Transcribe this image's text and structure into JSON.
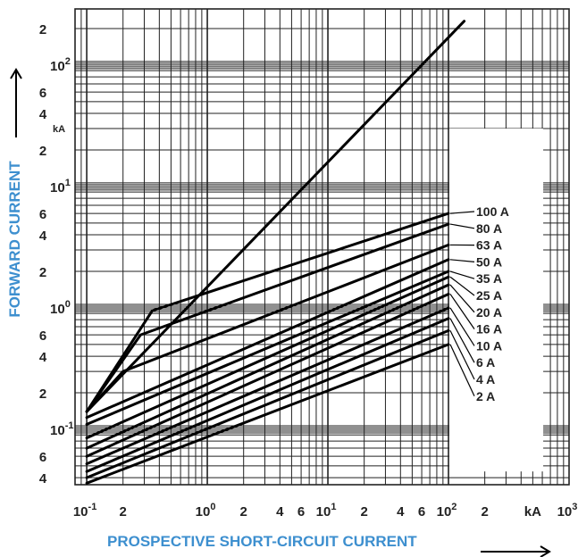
{
  "chart_data": {
    "type": "line",
    "log_x": true,
    "log_y": true,
    "xlim": [
      0.08,
      1000
    ],
    "ylim": [
      0.035,
      290
    ],
    "grid": true,
    "xlabel": "PROSPECTIVE SHORT-CIRCUIT CURRENT",
    "ylabel": "FORWARD CURRENT",
    "x_unit": "kA",
    "y_unit": "kA",
    "x_ticks": [
      {
        "value": 0.1,
        "base": "10",
        "exp": "-1"
      },
      {
        "value": 0.2,
        "base": "2",
        "exp": ""
      },
      {
        "value": 1,
        "base": "10",
        "exp": "0"
      },
      {
        "value": 2,
        "base": "2",
        "exp": ""
      },
      {
        "value": 4,
        "base": "4",
        "exp": ""
      },
      {
        "value": 6,
        "base": "6",
        "exp": ""
      },
      {
        "value": 10,
        "base": "10",
        "exp": "1"
      },
      {
        "value": 20,
        "base": "2",
        "exp": ""
      },
      {
        "value": 40,
        "base": "4",
        "exp": ""
      },
      {
        "value": 60,
        "base": "6",
        "exp": ""
      },
      {
        "value": 100,
        "base": "10",
        "exp": "2"
      },
      {
        "value": 200,
        "base": "2",
        "exp": ""
      },
      {
        "value": 1000,
        "base": "10",
        "exp": "3"
      }
    ],
    "y_ticks": [
      {
        "value": 200,
        "base": "2",
        "exp": ""
      },
      {
        "value": 100,
        "base": "10",
        "exp": "2"
      },
      {
        "value": 60,
        "base": "6",
        "exp": ""
      },
      {
        "value": 40,
        "base": "4",
        "exp": ""
      },
      {
        "value": 20,
        "base": "2",
        "exp": ""
      },
      {
        "value": 10,
        "base": "10",
        "exp": "1"
      },
      {
        "value": 6,
        "base": "6",
        "exp": ""
      },
      {
        "value": 4,
        "base": "4",
        "exp": ""
      },
      {
        "value": 2,
        "base": "2",
        "exp": ""
      },
      {
        "value": 1,
        "base": "10",
        "exp": "0"
      },
      {
        "value": 0.6,
        "base": "6",
        "exp": ""
      },
      {
        "value": 0.4,
        "base": "4",
        "exp": ""
      },
      {
        "value": 0.2,
        "base": "2",
        "exp": ""
      },
      {
        "value": 0.1,
        "base": "10",
        "exp": "-1"
      },
      {
        "value": 0.06,
        "base": "6",
        "exp": ""
      },
      {
        "value": 0.04,
        "base": "4",
        "exp": ""
      }
    ],
    "peak_line": {
      "x": [
        0.1,
        135
      ],
      "y": [
        0.14,
        230
      ]
    },
    "series": [
      {
        "name": "100 A",
        "x": [
          0.1,
          0.35,
          100
        ],
        "y": [
          0.14,
          0.95,
          6
        ]
      },
      {
        "name": "80 A",
        "x": [
          0.1,
          0.28,
          100
        ],
        "y": [
          0.14,
          0.6,
          4.9
        ]
      },
      {
        "name": "63 A",
        "x": [
          0.1,
          0.2,
          100
        ],
        "y": [
          0.14,
          0.3,
          3.3
        ]
      },
      {
        "name": "50 A",
        "x": [
          0.1,
          100
        ],
        "y": [
          0.125,
          2.5
        ]
      },
      {
        "name": "35 A",
        "x": [
          0.1,
          100
        ],
        "y": [
          0.11,
          2.0
        ]
      },
      {
        "name": "25 A",
        "x": [
          0.1,
          100
        ],
        "y": [
          0.085,
          1.8
        ]
      },
      {
        "name": "20 A",
        "x": [
          0.1,
          100
        ],
        "y": [
          0.07,
          1.55
        ]
      },
      {
        "name": "16 A",
        "x": [
          0.1,
          100
        ],
        "y": [
          0.06,
          1.3
        ]
      },
      {
        "name": "10 A",
        "x": [
          0.1,
          100
        ],
        "y": [
          0.052,
          1.0
        ]
      },
      {
        "name": "6 A",
        "x": [
          0.1,
          100
        ],
        "y": [
          0.045,
          0.82
        ]
      },
      {
        "name": "4 A",
        "x": [
          0.1,
          100
        ],
        "y": [
          0.04,
          0.65
        ]
      },
      {
        "name": "2 A",
        "x": [
          0.1,
          100
        ],
        "y": [
          0.036,
          0.5
        ]
      }
    ],
    "colors": {
      "axis_title": "#3d8fcf",
      "line": "#000000",
      "grid": "#222222"
    }
  }
}
